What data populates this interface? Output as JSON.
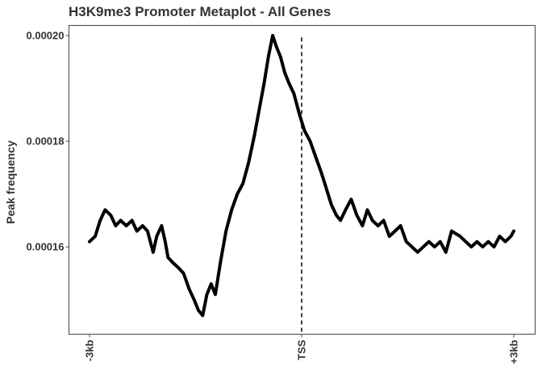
{
  "chart_data": {
    "type": "line",
    "title": "H3K9me3 Promoter Metaplot - All Genes",
    "xlabel": "",
    "ylabel": "Peak frequency",
    "x_ticks": [
      {
        "x": -3000,
        "label": "-3kb"
      },
      {
        "x": 0,
        "label": "TSS"
      },
      {
        "x": 3000,
        "label": "+3kb"
      }
    ],
    "y_ticks": [
      {
        "y": 0.00016,
        "label": "0.00016"
      },
      {
        "y": 0.00018,
        "label": "0.00018"
      },
      {
        "y": 0.0002,
        "label": "0.00020"
      }
    ],
    "xlim": [
      -3000,
      3000
    ],
    "ylim": [
      0.000146,
      0.0002
    ],
    "grid": false,
    "vline": {
      "x": 0,
      "style": "dashed"
    },
    "series": [
      {
        "color": "#000000",
        "points": [
          [
            -3000,
            0.000161
          ],
          [
            -2920,
            0.000162
          ],
          [
            -2850,
            0.000165
          ],
          [
            -2780,
            0.000167
          ],
          [
            -2700,
            0.000166
          ],
          [
            -2630,
            0.000164
          ],
          [
            -2560,
            0.000165
          ],
          [
            -2480,
            0.000164
          ],
          [
            -2400,
            0.000165
          ],
          [
            -2330,
            0.000163
          ],
          [
            -2250,
            0.000164
          ],
          [
            -2180,
            0.000163
          ],
          [
            -2100,
            0.000159
          ],
          [
            -2050,
            0.000162
          ],
          [
            -1980,
            0.000164
          ],
          [
            -1930,
            0.000161
          ],
          [
            -1890,
            0.000158
          ],
          [
            -1820,
            0.000157
          ],
          [
            -1740,
            0.000156
          ],
          [
            -1670,
            0.000155
          ],
          [
            -1590,
            0.000152
          ],
          [
            -1520,
            0.00015
          ],
          [
            -1460,
            0.000148
          ],
          [
            -1400,
            0.000147
          ],
          [
            -1340,
            0.000151
          ],
          [
            -1280,
            0.000153
          ],
          [
            -1220,
            0.000151
          ],
          [
            -1150,
            0.000157
          ],
          [
            -1070,
            0.000163
          ],
          [
            -990,
            0.000167
          ],
          [
            -910,
            0.00017
          ],
          [
            -830,
            0.000172
          ],
          [
            -750,
            0.000176
          ],
          [
            -670,
            0.000181
          ],
          [
            -600,
            0.000186
          ],
          [
            -530,
            0.000191
          ],
          [
            -470,
            0.000196
          ],
          [
            -410,
            0.0002
          ],
          [
            -360,
            0.000198
          ],
          [
            -300,
            0.000196
          ],
          [
            -240,
            0.000193
          ],
          [
            -180,
            0.000191
          ],
          [
            -110,
            0.000189
          ],
          [
            -30,
            0.000185
          ],
          [
            40,
            0.000182
          ],
          [
            120,
            0.00018
          ],
          [
            200,
            0.000177
          ],
          [
            280,
            0.000174
          ],
          [
            350,
            0.000171
          ],
          [
            420,
            0.000168
          ],
          [
            490,
            0.000166
          ],
          [
            550,
            0.000165
          ],
          [
            620,
            0.000167
          ],
          [
            700,
            0.000169
          ],
          [
            780,
            0.000166
          ],
          [
            860,
            0.000164
          ],
          [
            930,
            0.000167
          ],
          [
            1000,
            0.000165
          ],
          [
            1080,
            0.000164
          ],
          [
            1160,
            0.000165
          ],
          [
            1240,
            0.000162
          ],
          [
            1320,
            0.000163
          ],
          [
            1400,
            0.000164
          ],
          [
            1480,
            0.000161
          ],
          [
            1560,
            0.00016
          ],
          [
            1640,
            0.000159
          ],
          [
            1720,
            0.00016
          ],
          [
            1800,
            0.000161
          ],
          [
            1880,
            0.00016
          ],
          [
            1960,
            0.000161
          ],
          [
            2040,
            0.000159
          ],
          [
            2120,
            0.000163
          ],
          [
            2240,
            0.000162
          ],
          [
            2320,
            0.000161
          ],
          [
            2400,
            0.00016
          ],
          [
            2480,
            0.000161
          ],
          [
            2560,
            0.00016
          ],
          [
            2640,
            0.000161
          ],
          [
            2720,
            0.00016
          ],
          [
            2800,
            0.000162
          ],
          [
            2880,
            0.000161
          ],
          [
            2960,
            0.000162
          ],
          [
            3000,
            0.000163
          ]
        ]
      }
    ]
  }
}
